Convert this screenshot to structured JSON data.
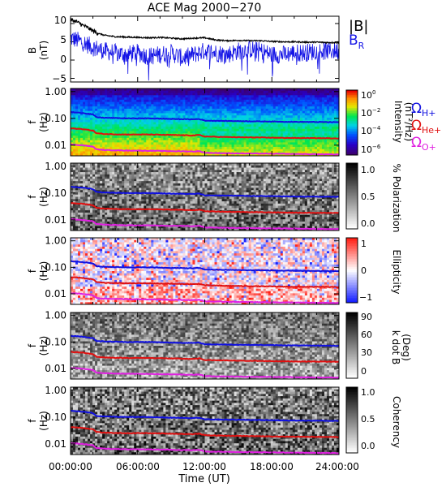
{
  "figure": {
    "title": "ACE Mag 2000−270",
    "x_axis_label": "Time (UT)",
    "x_ticks": [
      "00:00:00",
      "06:00:00",
      "12:00:00",
      "18:00:00",
      "24:00:00"
    ]
  },
  "legend": {
    "b_total": "|B|",
    "b_r_main": "B",
    "b_r_sub": "R",
    "omega_symbol": "Ω",
    "h_sub": "H+",
    "he_sub": "He+",
    "o_sub": "O+",
    "colors": {
      "h": "#1010e0",
      "he": "#e01010",
      "o": "#e020e0",
      "b_total": "#000000",
      "b_r": "#1414e6"
    }
  },
  "panel_ylabel": {
    "freq_main": "f",
    "freq_units": "(Hz)",
    "b_main": "B",
    "b_units": "(nT)"
  },
  "freq_ticks": [
    "1.00",
    "0.10",
    "0.01"
  ],
  "colorbars": {
    "intensity": {
      "label_main": "Intensity",
      "label_units": "(nT²/Hz)",
      "ticks": [
        {
          "base": "10",
          "exp": "0"
        },
        {
          "base": "10",
          "exp": "−2"
        },
        {
          "base": "10",
          "exp": "−4"
        },
        {
          "base": "10",
          "exp": "−6"
        }
      ]
    },
    "polarization": {
      "label": "% Polarization",
      "ticks": [
        "1.0",
        "0.5",
        "0.0"
      ]
    },
    "ellipticity": {
      "label": "Ellipticity",
      "ticks": [
        "1",
        "0",
        "−1"
      ]
    },
    "kdotb": {
      "label_main": "k dot B",
      "label_units": "(Deg)",
      "ticks": [
        "90",
        "60",
        "30",
        "0"
      ]
    },
    "coherency": {
      "label": "Coherency",
      "ticks": [
        "1.0",
        "0.5",
        "0.0"
      ]
    }
  },
  "chart_data": [
    {
      "type": "line",
      "panel": "magnetic field",
      "ylabel": "B (nT)",
      "ylim": [
        -6,
        12
      ],
      "yticks": [
        10,
        5,
        0,
        -5
      ],
      "xlim_hours": [
        0,
        24
      ],
      "series": [
        {
          "name": "|B|",
          "color": "#000000",
          "x_hours": [
            0,
            0.5,
            1,
            1.5,
            2,
            2.5,
            3,
            4,
            5,
            6,
            7,
            8,
            9,
            10,
            11,
            12,
            13,
            14,
            15,
            16,
            17,
            18,
            19,
            20,
            21,
            22,
            23,
            24
          ],
          "values": [
            11,
            10.6,
            9.7,
            8.9,
            8.0,
            7.3,
            6.8,
            6.4,
            6.3,
            6.2,
            6.1,
            6.2,
            6.0,
            5.8,
            6.0,
            6.1,
            5.5,
            5.3,
            5.4,
            5.3,
            5.3,
            5.1,
            5.0,
            5.0,
            4.9,
            4.9,
            4.8,
            4.8
          ]
        },
        {
          "name": "B_R",
          "color": "#1414e6",
          "x_hours": [
            0,
            1,
            2,
            3,
            4,
            5,
            6,
            7,
            8,
            9,
            10,
            11,
            12,
            13,
            14,
            15,
            16,
            17,
            18,
            19,
            20,
            21,
            22,
            23,
            24
          ],
          "values": [
            6.0,
            5.0,
            3.5,
            2.5,
            2.0,
            1.5,
            2.0,
            1.0,
            1.5,
            2.0,
            0.5,
            1.5,
            2.5,
            2.0,
            1.5,
            2.5,
            3.0,
            2.5,
            1.5,
            1.5,
            2.0,
            2.0,
            2.5,
            2.5,
            2.5
          ]
        }
      ]
    },
    {
      "type": "line",
      "panel": "ion gyrofrequencies (overplotted on each spectrogram)",
      "ylabel": "f (Hz)",
      "yscale": "log",
      "ylim": [
        0.004,
        1.3
      ],
      "xlim_hours": [
        0,
        24
      ],
      "series": [
        {
          "name": "ΩH+",
          "color": "#1010e0",
          "x_hours": [
            0,
            1,
            2,
            2.3,
            3,
            5,
            7,
            9,
            11,
            11.5,
            12,
            14,
            16,
            18,
            20,
            22,
            24
          ],
          "values": [
            0.17,
            0.16,
            0.14,
            0.11,
            0.105,
            0.1,
            0.1,
            0.095,
            0.092,
            0.095,
            0.082,
            0.08,
            0.078,
            0.076,
            0.074,
            0.073,
            0.072
          ]
        },
        {
          "name": "ΩHe+",
          "color": "#e01010",
          "x_hours": [
            0,
            1,
            2,
            2.3,
            3,
            5,
            7,
            9,
            11,
            11.5,
            12,
            14,
            16,
            18,
            20,
            22,
            24
          ],
          "values": [
            0.042,
            0.04,
            0.035,
            0.028,
            0.026,
            0.025,
            0.025,
            0.024,
            0.023,
            0.024,
            0.021,
            0.02,
            0.0195,
            0.019,
            0.0185,
            0.0183,
            0.018
          ]
        },
        {
          "name": "ΩO+",
          "color": "#e020e0",
          "x_hours": [
            0,
            1,
            2,
            2.3,
            3,
            5,
            7,
            9,
            11,
            11.5,
            12,
            14,
            16,
            18,
            20,
            22,
            24
          ],
          "values": [
            0.0105,
            0.01,
            0.0088,
            0.007,
            0.0066,
            0.0063,
            0.0062,
            0.006,
            0.0058,
            0.006,
            0.0052,
            0.005,
            0.0049,
            0.0048,
            0.0047,
            0.0046,
            0.0045
          ]
        }
      ]
    },
    {
      "type": "heatmap",
      "panel": "intensity spectrogram",
      "ylabel": "f (Hz)",
      "yscale": "log",
      "colorbar": "Intensity (nT²/Hz)",
      "colorscale": "rainbow",
      "zlim": [
        "1e-6",
        "1e0"
      ]
    },
    {
      "type": "heatmap",
      "panel": "polarization spectrogram",
      "ylabel": "f (Hz)",
      "yscale": "log",
      "colorbar": "% Polarization",
      "colorscale": "grayscale",
      "zlim": [
        0,
        1
      ]
    },
    {
      "type": "heatmap",
      "panel": "ellipticity spectrogram",
      "ylabel": "f (Hz)",
      "yscale": "log",
      "colorbar": "Ellipticity",
      "colorscale": "blue-white-red",
      "zlim": [
        -1,
        1
      ]
    },
    {
      "type": "heatmap",
      "panel": "k dot B spectrogram",
      "ylabel": "f (Hz)",
      "yscale": "log",
      "colorbar": "k dot B (Deg)",
      "colorscale": "grayscale",
      "zlim": [
        0,
        90
      ]
    },
    {
      "type": "heatmap",
      "panel": "coherency spectrogram",
      "ylabel": "f (Hz)",
      "yscale": "log",
      "colorbar": "Coherency",
      "colorscale": "grayscale",
      "zlim": [
        0,
        1
      ]
    }
  ]
}
